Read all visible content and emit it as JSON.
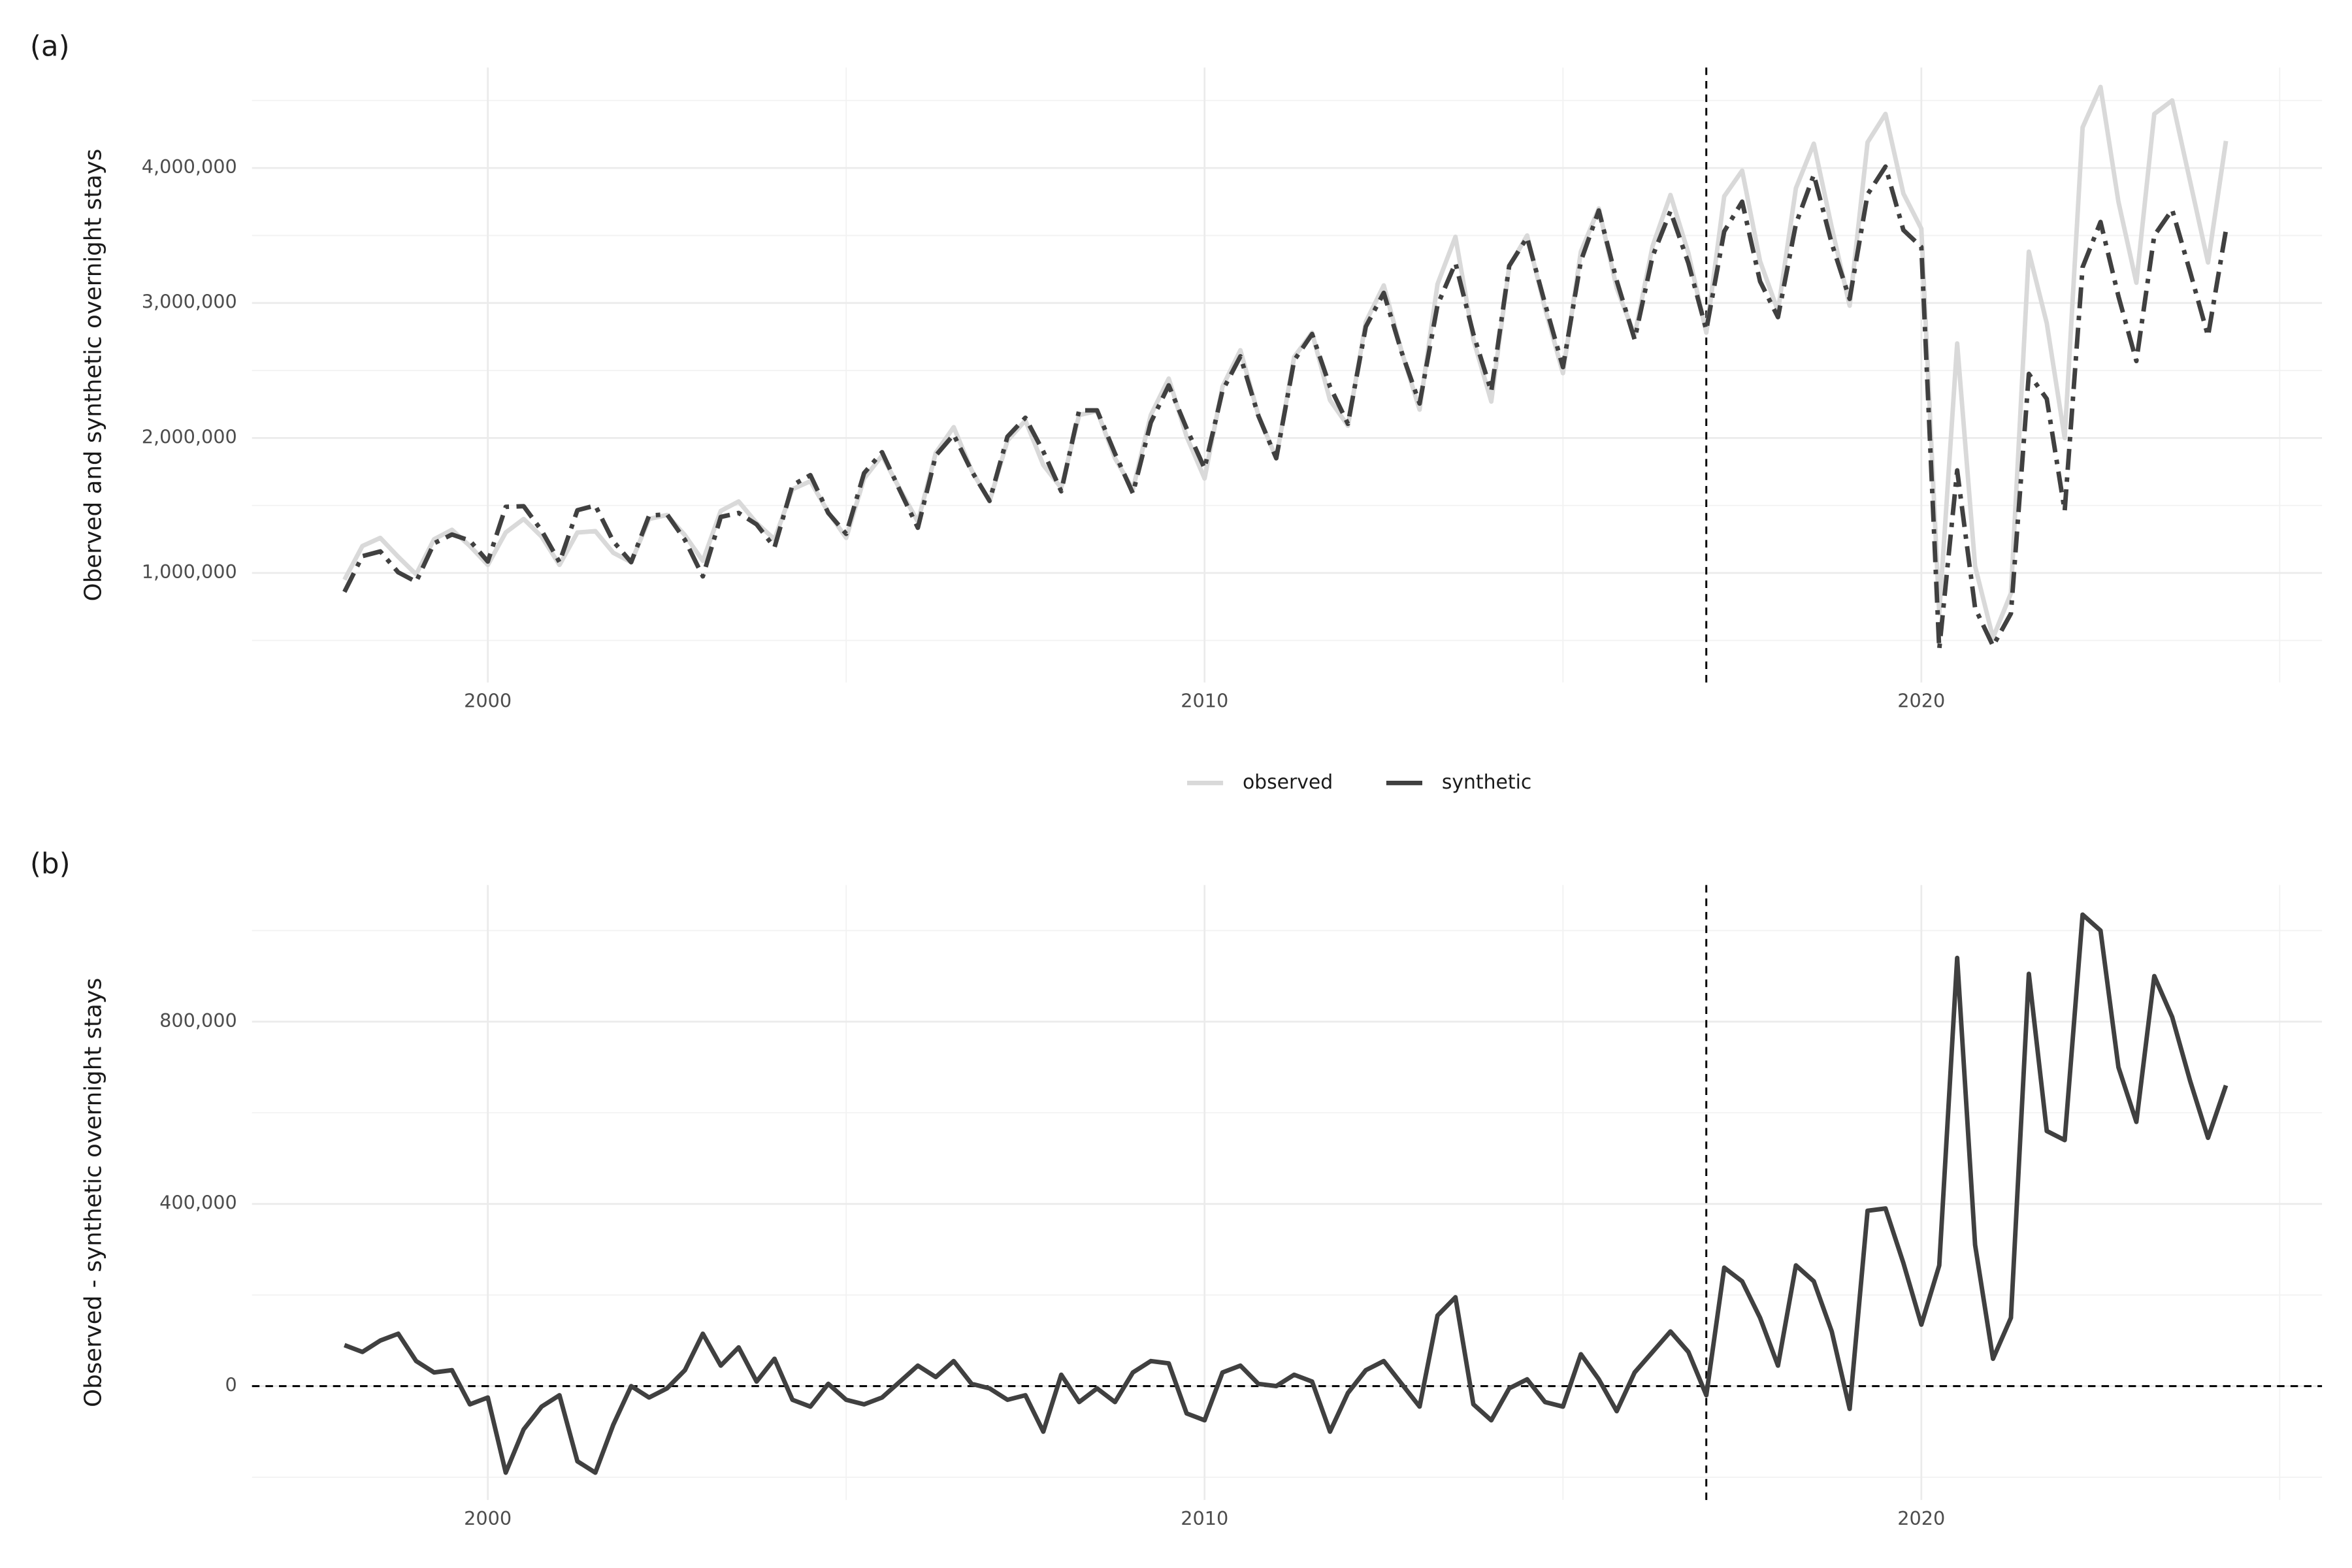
{
  "chart_data": [
    {
      "type": "line",
      "panel_label": "(a)",
      "ylabel": "Oberved and synthetic overnight stays",
      "x": [
        1998,
        1998.25,
        1998.5,
        1998.75,
        1999,
        1999.25,
        1999.5,
        1999.75,
        2000,
        2000.25,
        2000.5,
        2000.75,
        2001,
        2001.25,
        2001.5,
        2001.75,
        2002,
        2002.25,
        2002.5,
        2002.75,
        2003,
        2003.25,
        2003.5,
        2003.75,
        2004,
        2004.25,
        2004.5,
        2004.75,
        2005,
        2005.25,
        2005.5,
        2005.75,
        2006,
        2006.25,
        2006.5,
        2006.75,
        2007,
        2007.25,
        2007.5,
        2007.75,
        2008,
        2008.25,
        2008.5,
        2008.75,
        2009,
        2009.25,
        2009.5,
        2009.75,
        2010,
        2010.25,
        2010.5,
        2010.75,
        2011,
        2011.25,
        2011.5,
        2011.75,
        2012,
        2012.25,
        2012.5,
        2012.75,
        2013,
        2013.25,
        2013.5,
        2013.75,
        2014,
        2014.25,
        2014.5,
        2014.75,
        2015,
        2015.25,
        2015.5,
        2015.75,
        2016,
        2016.25,
        2016.5,
        2016.75,
        2017,
        2017.25,
        2017.5,
        2017.75,
        2018,
        2018.25,
        2018.5,
        2018.75,
        2019,
        2019.25,
        2019.5,
        2019.75,
        2020,
        2020.25,
        2020.5,
        2020.75,
        2021,
        2021.25,
        2021.5,
        2021.75,
        2022,
        2022.25,
        2022.5,
        2022.75,
        2023,
        2023.25,
        2023.5,
        2023.75,
        2024,
        2024.25
      ],
      "series": [
        {
          "name": "observed",
          "color": "#d9d9d9",
          "linestyle": "solid",
          "values": [
            950000,
            1200000,
            1260000,
            1120000,
            990000,
            1250000,
            1320000,
            1200000,
            1060000,
            1300000,
            1400000,
            1270000,
            1060000,
            1300000,
            1310000,
            1150000,
            1080000,
            1400000,
            1430000,
            1280000,
            1090000,
            1460000,
            1530000,
            1370000,
            1250000,
            1620000,
            1680000,
            1450000,
            1260000,
            1700000,
            1870000,
            1620000,
            1380000,
            1890000,
            2080000,
            1760000,
            1530000,
            1980000,
            2130000,
            1800000,
            1630000,
            2170000,
            2200000,
            1850000,
            1620000,
            2170000,
            2440000,
            2010000,
            1700000,
            2380000,
            2650000,
            2170000,
            1850000,
            2600000,
            2780000,
            2280000,
            2090000,
            2860000,
            3130000,
            2640000,
            2210000,
            3140000,
            3490000,
            2730000,
            2270000,
            3270000,
            3500000,
            2960000,
            2480000,
            3380000,
            3700000,
            3110000,
            2760000,
            3420000,
            3800000,
            3370000,
            2780000,
            3790000,
            3980000,
            3310000,
            2940000,
            3850000,
            4180000,
            3560000,
            2980000,
            4190000,
            4400000,
            3810000,
            3550000,
            700000,
            2700000,
            1050000,
            520000,
            850000,
            3380000,
            2850000,
            2000000,
            4300000,
            4600000,
            3750000,
            3150000,
            4400000,
            4500000,
            3900000,
            3300000,
            4200000
          ]
        },
        {
          "name": "synthetic",
          "color": "#404040",
          "linestyle": "dotdash",
          "values": [
            860000,
            1125000,
            1160000,
            1005000,
            935000,
            1220000,
            1285000,
            1240000,
            1085000,
            1490000,
            1495000,
            1315000,
            1080000,
            1465000,
            1500000,
            1235000,
            1080000,
            1425000,
            1435000,
            1245000,
            975000,
            1415000,
            1445000,
            1360000,
            1190000,
            1650000,
            1725000,
            1445000,
            1290000,
            1740000,
            1895000,
            1610000,
            1335000,
            1870000,
            2025000,
            1755000,
            1535000,
            2010000,
            2150000,
            1900000,
            1605000,
            2205000,
            2205000,
            1885000,
            1590000,
            2115000,
            2390000,
            2070000,
            1775000,
            2350000,
            2605000,
            2165000,
            1850000,
            2575000,
            2770000,
            2380000,
            2105000,
            2825000,
            3075000,
            2635000,
            2255000,
            2985000,
            3295000,
            2770000,
            2345000,
            3275000,
            3485000,
            2995000,
            2525000,
            3310000,
            3685000,
            3165000,
            2730000,
            3345000,
            3680000,
            3295000,
            2800000,
            3530000,
            3750000,
            3160000,
            2895000,
            3585000,
            3950000,
            3440000,
            3030000,
            3805000,
            4010000,
            3540000,
            3415000,
            435000,
            1760000,
            740000,
            460000,
            700000,
            2475000,
            2290000,
            1460000,
            3265000,
            3600000,
            3050000,
            2570000,
            3500000,
            3690000,
            3230000,
            2755000,
            3540000
          ]
        }
      ],
      "xlim": [
        1996.71,
        2025.59
      ],
      "xticks": [
        2000,
        2010,
        2020
      ],
      "xminor": [
        2005,
        2015,
        2025
      ],
      "ylim": [
        189000,
        4744000
      ],
      "yticks": [
        {
          "value": 1000000,
          "label": "1,000,000"
        },
        {
          "value": 2000000,
          "label": "2,000,000"
        },
        {
          "value": 3000000,
          "label": "3,000,000"
        },
        {
          "value": 4000000,
          "label": "4,000,000"
        }
      ],
      "yminor": [
        500000,
        1500000,
        2500000,
        3500000,
        4500000
      ],
      "vline": 2017,
      "grid": true,
      "legend": "bottom"
    },
    {
      "type": "line",
      "panel_label": "(b)",
      "ylabel": "Observed - synthetic overnight stays",
      "x": [
        1998,
        1998.25,
        1998.5,
        1998.75,
        1999,
        1999.25,
        1999.5,
        1999.75,
        2000,
        2000.25,
        2000.5,
        2000.75,
        2001,
        2001.25,
        2001.5,
        2001.75,
        2002,
        2002.25,
        2002.5,
        2002.75,
        2003,
        2003.25,
        2003.5,
        2003.75,
        2004,
        2004.25,
        2004.5,
        2004.75,
        2005,
        2005.25,
        2005.5,
        2005.75,
        2006,
        2006.25,
        2006.5,
        2006.75,
        2007,
        2007.25,
        2007.5,
        2007.75,
        2008,
        2008.25,
        2008.5,
        2008.75,
        2009,
        2009.25,
        2009.5,
        2009.75,
        2010,
        2010.25,
        2010.5,
        2010.75,
        2011,
        2011.25,
        2011.5,
        2011.75,
        2012,
        2012.25,
        2012.5,
        2012.75,
        2013,
        2013.25,
        2013.5,
        2013.75,
        2014,
        2014.25,
        2014.5,
        2014.75,
        2015,
        2015.25,
        2015.5,
        2015.75,
        2016,
        2016.25,
        2016.5,
        2016.75,
        2017,
        2017.25,
        2017.5,
        2017.75,
        2018,
        2018.25,
        2018.5,
        2018.75,
        2019,
        2019.25,
        2019.5,
        2019.75,
        2020,
        2020.25,
        2020.5,
        2020.75,
        2021,
        2021.25,
        2021.5,
        2021.75,
        2022,
        2022.25,
        2022.5,
        2022.75,
        2023,
        2023.25,
        2023.5,
        2023.75,
        2024,
        2024.25
      ],
      "color": "#404040",
      "values": [
        90000,
        75000,
        100000,
        115000,
        55000,
        30000,
        35000,
        -40000,
        -25000,
        -190000,
        -95000,
        -45000,
        -20000,
        -165000,
        -190000,
        -85000,
        0,
        -25000,
        -5000,
        35000,
        115000,
        45000,
        85000,
        10000,
        60000,
        -30000,
        -45000,
        5000,
        -30000,
        -40000,
        -25000,
        10000,
        45000,
        20000,
        55000,
        5000,
        -5000,
        -30000,
        -20000,
        -100000,
        25000,
        -35000,
        -5000,
        -35000,
        30000,
        55000,
        50000,
        -60000,
        -75000,
        30000,
        45000,
        5000,
        0,
        25000,
        10000,
        -100000,
        -15000,
        35000,
        55000,
        5000,
        -45000,
        155000,
        195000,
        -40000,
        -75000,
        -5000,
        15000,
        -35000,
        -45000,
        70000,
        15000,
        -55000,
        30000,
        75000,
        120000,
        75000,
        -20000,
        260000,
        230000,
        150000,
        45000,
        265000,
        230000,
        120000,
        -50000,
        385000,
        390000,
        270000,
        135000,
        265000,
        940000,
        310000,
        60000,
        150000,
        905000,
        560000,
        540000,
        1035000,
        1000000,
        700000,
        580000,
        900000,
        810000,
        670000,
        545000,
        660000
      ],
      "xlim": [
        1996.71,
        2025.59
      ],
      "xticks": [
        2000,
        2010,
        2020
      ],
      "xminor": [
        2005,
        2015,
        2025
      ],
      "ylim": [
        -250000,
        1100000
      ],
      "yticks": [
        0,
        {
          "value": 400000,
          "label": "400,000"
        },
        {
          "value": 800000,
          "label": "800,000"
        }
      ],
      "yminor": [
        -200000,
        200000,
        600000,
        1000000
      ],
      "vline": 2017,
      "hline": 0,
      "grid": true
    }
  ]
}
